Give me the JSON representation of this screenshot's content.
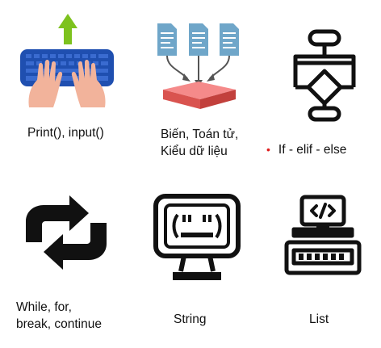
{
  "tiles": [
    {
      "id": "io",
      "icon": "keyboard-typing-icon",
      "lines": [
        "Print(), input()"
      ]
    },
    {
      "id": "vars",
      "icon": "data-merge-icon",
      "lines": [
        "Biến, Toán tử,",
        "Kiểu dữ liệu"
      ]
    },
    {
      "id": "cond",
      "icon": "flowchart-icon",
      "bullet": "•",
      "lines": [
        "If - elif - else"
      ]
    },
    {
      "id": "loop",
      "icon": "loop-arrows-icon",
      "lines": [
        "While, for,",
        "break, continue"
      ]
    },
    {
      "id": "string",
      "icon": "monitor-quote-icon",
      "lines": [
        "String"
      ]
    },
    {
      "id": "list",
      "icon": "code-machine-icon",
      "lines": [
        "List"
      ]
    }
  ],
  "colors": {
    "keyboard": "#1f4fb0",
    "hands": "#f2b39b",
    "arrow_green": "#7dc21e",
    "docs": "#6fa6c9",
    "box_top": "#f58a8a",
    "box_side": "#d9534f",
    "bullet": "#e02020",
    "ink": "#111111"
  }
}
